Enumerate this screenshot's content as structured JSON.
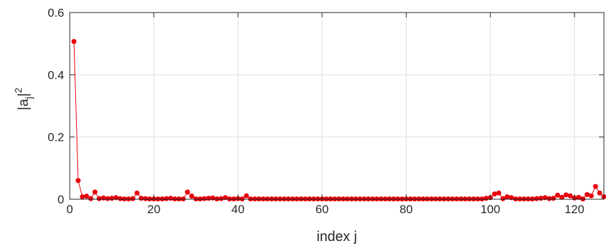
{
  "chart_data": {
    "type": "line",
    "xlabel": "index j",
    "ylabel": "|a_j|^2",
    "xlim": [
      0,
      127
    ],
    "ylim": [
      0,
      0.6
    ],
    "xticks": [
      0,
      20,
      40,
      60,
      80,
      100,
      120
    ],
    "xtick_labels": [
      "0",
      "20",
      "40",
      "60",
      "80",
      "100",
      "120"
    ],
    "yticks": [
      0,
      0.2,
      0.4,
      0.6
    ],
    "ytick_labels": [
      "0",
      "0.2",
      "0.4",
      "0.6"
    ],
    "grid": true,
    "series": [
      {
        "color": "#e8000b",
        "marker": "circle",
        "x": [
          1,
          2,
          3,
          4,
          5,
          6,
          7,
          8,
          9,
          10,
          11,
          12,
          13,
          14,
          15,
          16,
          17,
          18,
          19,
          20,
          21,
          22,
          23,
          24,
          25,
          26,
          27,
          28,
          29,
          30,
          31,
          32,
          33,
          34,
          35,
          36,
          37,
          38,
          39,
          40,
          41,
          42,
          43,
          44,
          45,
          46,
          47,
          48,
          49,
          50,
          51,
          52,
          53,
          54,
          55,
          56,
          57,
          58,
          59,
          60,
          61,
          62,
          63,
          64,
          65,
          66,
          67,
          68,
          69,
          70,
          71,
          72,
          73,
          74,
          75,
          76,
          77,
          78,
          79,
          80,
          81,
          82,
          83,
          84,
          85,
          86,
          87,
          88,
          89,
          90,
          91,
          92,
          93,
          94,
          95,
          96,
          97,
          98,
          99,
          100,
          101,
          102,
          103,
          104,
          105,
          106,
          107,
          108,
          109,
          110,
          111,
          112,
          113,
          114,
          115,
          116,
          117,
          118,
          119,
          120,
          121,
          122,
          123,
          124,
          125,
          126,
          127
        ],
        "y": [
          0.507,
          0.06,
          0.008,
          0.01,
          0.002,
          0.023,
          0.002,
          0.004,
          0.002,
          0.003,
          0.005,
          0.002,
          0.001,
          0.001,
          0.002,
          0.02,
          0.003,
          0.002,
          0.001,
          0.001,
          0.001,
          0.001,
          0.002,
          0.003,
          0.001,
          0.001,
          0.001,
          0.023,
          0.01,
          0.001,
          0.001,
          0.002,
          0.003,
          0.004,
          0.001,
          0.002,
          0.005,
          0.001,
          0.001,
          0.002,
          0.001,
          0.011,
          0.001,
          0.001,
          0.001,
          0.001,
          0.001,
          0.001,
          0.001,
          0.001,
          0.001,
          0.001,
          0.001,
          0.001,
          0.001,
          0.001,
          0.001,
          0.001,
          0.001,
          0.001,
          0.001,
          0.001,
          0.001,
          0.001,
          0.001,
          0.001,
          0.001,
          0.001,
          0.001,
          0.001,
          0.001,
          0.001,
          0.001,
          0.001,
          0.001,
          0.001,
          0.001,
          0.001,
          0.001,
          0.001,
          0.001,
          0.001,
          0.001,
          0.001,
          0.001,
          0.001,
          0.001,
          0.001,
          0.001,
          0.001,
          0.001,
          0.001,
          0.001,
          0.001,
          0.001,
          0.001,
          0.001,
          0.001,
          0.003,
          0.005,
          0.017,
          0.02,
          0.002,
          0.008,
          0.005,
          0.001,
          0.001,
          0.001,
          0.001,
          0.001,
          0.002,
          0.003,
          0.005,
          0.002,
          0.003,
          0.013,
          0.006,
          0.014,
          0.011,
          0.004,
          0.006,
          0.001,
          0.015,
          0.011,
          0.041,
          0.02,
          0.008
        ]
      }
    ]
  }
}
